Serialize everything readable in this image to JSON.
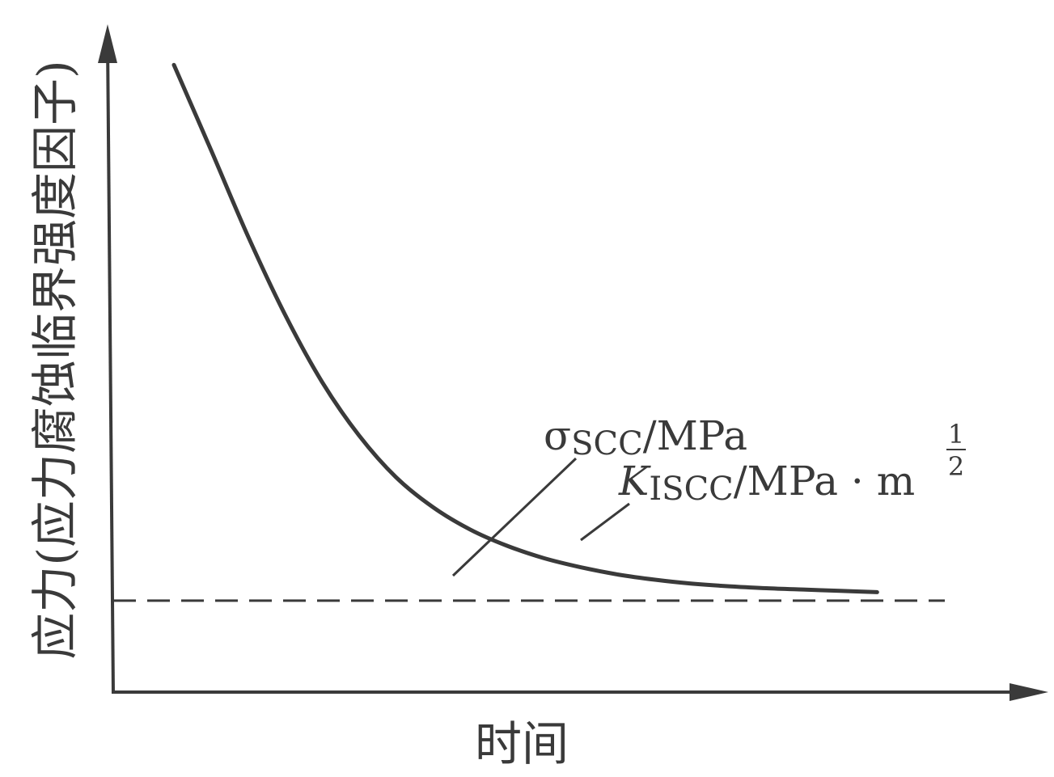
{
  "chart_data": {
    "type": "line",
    "xlabel": "时间",
    "ylabel": "应力(应力腐蚀临界强度因子)",
    "xlim": [
      0,
      10
    ],
    "ylim": [
      0,
      10
    ],
    "grid": false,
    "series": [
      {
        "x": [
          0.0,
          0.5,
          1.0,
          1.5,
          2.0,
          2.5,
          3.0,
          3.5,
          4.0,
          4.5,
          5.0,
          5.5,
          6.0,
          6.5,
          7.0,
          7.5,
          8.0,
          8.5,
          9.0,
          9.5
        ],
        "y": [
          9.6,
          8.3,
          6.98,
          5.78,
          4.75,
          3.93,
          3.29,
          2.83,
          2.49,
          2.24,
          2.05,
          1.91,
          1.8,
          1.72,
          1.66,
          1.62,
          1.59,
          1.57,
          1.55,
          1.53
        ]
      }
    ],
    "threshold": {
      "y": 1.4,
      "style": "dashed"
    },
    "annotations": [
      {
        "symbol": "σ",
        "subscript": "SCC",
        "unit": "/MPa"
      },
      {
        "symbol": "K",
        "subscript": "ISCC",
        "unit": "/MPa · m",
        "exponent_numerator": "1",
        "exponent_denominator": "2"
      }
    ]
  },
  "colors": {
    "ink": "#3a3a3a",
    "background": "#ffffff"
  }
}
